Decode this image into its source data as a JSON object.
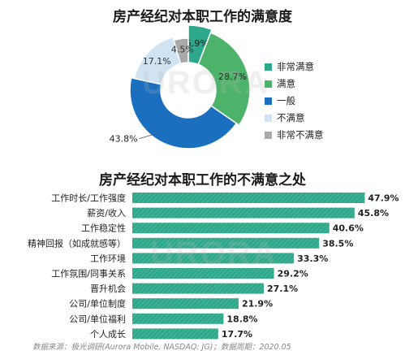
{
  "chart_data": [
    {
      "type": "pie",
      "title": "房产经纪对本职工作的满意度",
      "categories": [
        "非常满意",
        "满意",
        "一般",
        "不满意",
        "非常不满意"
      ],
      "values": [
        5.9,
        28.7,
        43.8,
        17.1,
        4.5
      ],
      "value_labels": [
        "5.9%",
        "28.7%",
        "43.8%",
        "17.1%",
        "4.5%"
      ],
      "colors": [
        "#2ea88a",
        "#4db36a",
        "#1a6fbf",
        "#cfe3f3",
        "#a9a9a9"
      ],
      "legend": "right"
    },
    {
      "type": "bar",
      "title": "房产经纪对本职工作的不满意之处",
      "categories": [
        "工作时长/工作强度",
        "薪资/收入",
        "工作稳定性",
        "精神回报（如成就感等）",
        "工作环境",
        "工作氛围/同事关系",
        "晋升机会",
        "公司/单位制度",
        "公司/单位福利",
        "个人成长"
      ],
      "values": [
        47.9,
        45.8,
        40.6,
        38.5,
        33.3,
        29.2,
        27.1,
        21.9,
        18.8,
        17.7
      ],
      "value_labels": [
        "47.9%",
        "45.8%",
        "40.6%",
        "38.5%",
        "33.3%",
        "29.2%",
        "27.1%",
        "21.9%",
        "18.8%",
        "17.7%"
      ],
      "color": "#2ea88a",
      "orientation": "horizontal"
    }
  ],
  "footer": "数据来源：极光调研(Aurora Mobile, NASDAQ: JG)；数据周期：2020.05",
  "watermark": "URORA"
}
